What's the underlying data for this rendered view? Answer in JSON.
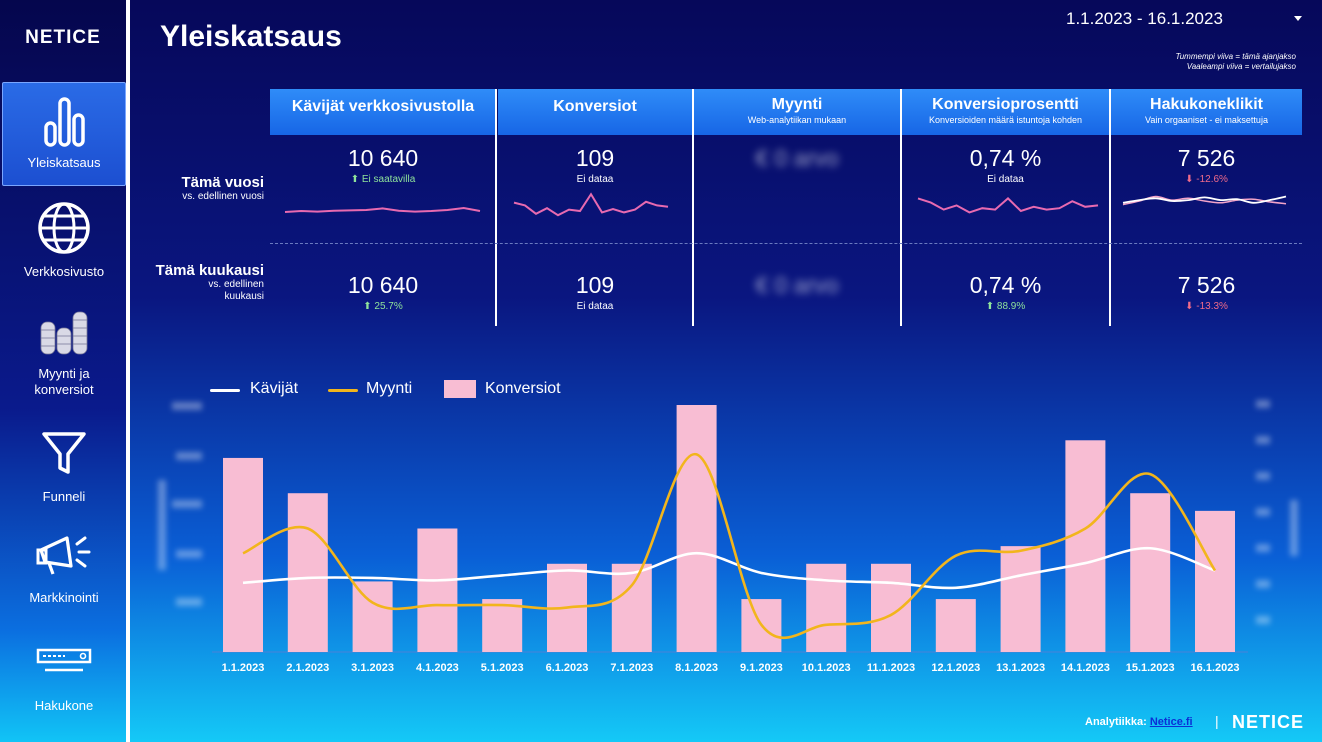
{
  "brand": "NETICE",
  "page_title": "Yleiskatsaus",
  "date_range": "1.1.2023 - 16.1.2023",
  "legend_note": [
    "Tummempi viiva = tämä ajanjakso",
    "Vaaleampi viiva = vertailujakso"
  ],
  "sidebar": {
    "items": [
      {
        "label": "Yleiskatsaus",
        "icon": "bar-chart-icon",
        "active": true
      },
      {
        "label": "Verkkosivusto",
        "icon": "globe-icon"
      },
      {
        "label": "Myynti ja konversiot",
        "icon": "coins-icon"
      },
      {
        "label": "Funneli",
        "icon": "funnel-icon"
      },
      {
        "label": "Markkinointi",
        "icon": "megaphone-icon"
      },
      {
        "label": "Hakukone",
        "icon": "search-bar-icon"
      }
    ]
  },
  "kpi": {
    "columns": [
      {
        "title": "Kävijät verkkosivustolla",
        "sub": ""
      },
      {
        "title": "Konversiot",
        "sub": ""
      },
      {
        "title": "Myynti",
        "sub": "Web-analytiikan mukaan"
      },
      {
        "title": "Konversioprosentti",
        "sub": "Konversioiden määrä istuntoja kohden"
      },
      {
        "title": "Hakukoneklikit",
        "sub": "Vain orgaaniset - ei maksettuja"
      }
    ],
    "rows": [
      {
        "title": "Tämä vuosi",
        "sub": "vs. edellinen vuosi",
        "cells": [
          {
            "value": "10 640",
            "change": "⬆ Ei saatavilla",
            "tone": "green"
          },
          {
            "value": "109",
            "change": "Ei dataa",
            "tone": "white"
          },
          {
            "value": "€ 0 arvo",
            "change": "",
            "tone": "blur"
          },
          {
            "value": "0,74 %",
            "change": "Ei dataa",
            "tone": "white"
          },
          {
            "value": "7 526",
            "change": "⬇ -12.6%",
            "tone": "red"
          }
        ]
      },
      {
        "title": "Tämä kuukausi",
        "sub": "vs. edellinen kuukausi",
        "cells": [
          {
            "value": "10 640",
            "change": "⬆ 25.7%",
            "tone": "green"
          },
          {
            "value": "109",
            "change": "Ei dataa",
            "tone": "white"
          },
          {
            "value": "€ 0 arvo",
            "change": "",
            "tone": "blur"
          },
          {
            "value": "0,74 %",
            "change": "⬆ 88.9%",
            "tone": "green"
          },
          {
            "value": "7 526",
            "change": "⬇ -13.3%",
            "tone": "red"
          }
        ]
      }
    ],
    "sparklines": {
      "visitors": [
        0.4,
        0.45,
        0.42,
        0.46,
        0.48,
        0.5,
        0.58,
        0.46,
        0.42,
        0.45,
        0.5,
        0.6,
        0.45
      ],
      "conversions": [
        0.55,
        0.45,
        0.15,
        0.35,
        0.1,
        0.3,
        0.25,
        0.85,
        0.2,
        0.32,
        0.2,
        0.3,
        0.58,
        0.45,
        0.4
      ],
      "conv_rate": [
        0.7,
        0.55,
        0.3,
        0.45,
        0.2,
        0.35,
        0.3,
        0.7,
        0.25,
        0.4,
        0.3,
        0.35,
        0.6,
        0.4,
        0.45
      ],
      "search_current": [
        0.4,
        0.55,
        0.65,
        0.5,
        0.55,
        0.7,
        0.55,
        0.6,
        0.4,
        0.55,
        0.75
      ],
      "search_previous": [
        0.3,
        0.5,
        0.75,
        0.55,
        0.65,
        0.5,
        0.4,
        0.55,
        0.6,
        0.45,
        0.35
      ]
    }
  },
  "chart_data": {
    "type": "bar",
    "categories": [
      "1.1.2023",
      "2.1.2023",
      "3.1.2023",
      "4.1.2023",
      "5.1.2023",
      "6.1.2023",
      "7.1.2023",
      "8.1.2023",
      "9.1.2023",
      "10.1.2023",
      "11.1.2023",
      "12.1.2023",
      "13.1.2023",
      "14.1.2023",
      "15.1.2023",
      "16.1.2023"
    ],
    "series": [
      {
        "name": "Konversiot",
        "kind": "bar",
        "color": "#f8bdd3",
        "values": [
          11,
          9,
          4,
          7,
          3,
          5,
          5,
          14,
          3,
          5,
          5,
          3,
          6,
          12,
          9,
          8
        ]
      },
      {
        "name": "Kävijät",
        "kind": "line",
        "color": "#ffffff",
        "values": [
          0.28,
          0.3,
          0.3,
          0.29,
          0.31,
          0.33,
          0.32,
          0.4,
          0.32,
          0.29,
          0.28,
          0.26,
          0.31,
          0.36,
          0.42,
          0.33
        ]
      },
      {
        "name": "Myynti",
        "kind": "line",
        "color": "#f2b51c",
        "values": [
          0.4,
          0.5,
          0.2,
          0.19,
          0.19,
          0.18,
          0.27,
          0.8,
          0.11,
          0.11,
          0.15,
          0.39,
          0.41,
          0.5,
          0.72,
          0.33
        ]
      }
    ],
    "ylim": [
      0,
      14
    ],
    "legend_position": "top-left"
  },
  "footer": {
    "credit_label": "Analytiikka:",
    "credit_link": "Netice.fi",
    "separator": "|",
    "logo": "NETICE"
  }
}
